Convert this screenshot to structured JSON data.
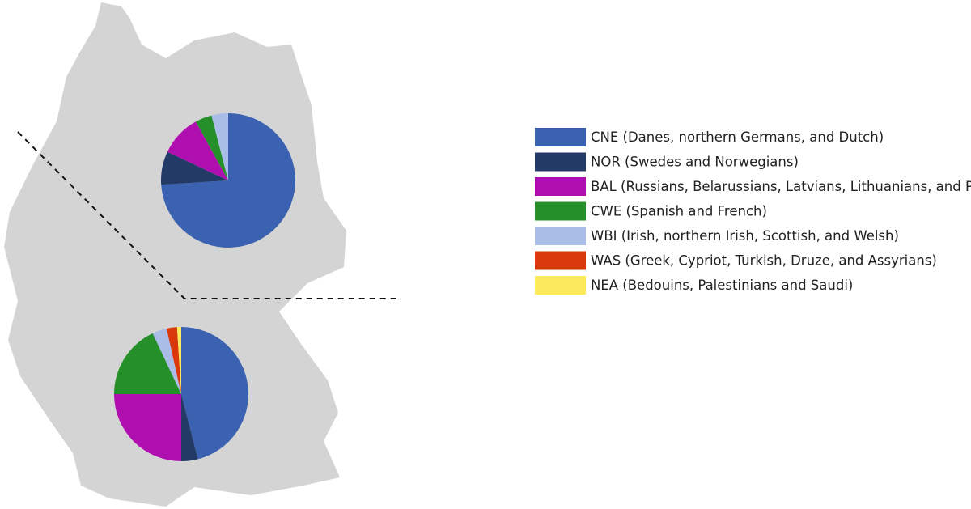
{
  "chart_data": {
    "type": "pie",
    "categories": [
      "CNE (Danes, northern Germans, and Dutch)",
      "NOR (Swedes and Norwegians)",
      "BAL (Russians, Belarussians, Latvians, Lithuanians, and Polish)",
      "CWE (Spanish and French)",
      "WBI (Irish, northern Irish, Scottish, and Welsh)",
      "WAS (Greek, Cypriot, Turkish, Druze, and Assyrians)",
      "NEA (Bedouins, Palestinians and Saudi)"
    ],
    "colors": [
      "#3a62b0",
      "#233a66",
      "#b00fb0",
      "#259029",
      "#a9bde6",
      "#d9380a",
      "#fde95c"
    ],
    "pies": [
      {
        "values": [
          74,
          8,
          10,
          4,
          4,
          0,
          0
        ]
      },
      {
        "values": [
          46,
          4,
          25,
          18,
          3.5,
          2.5,
          1
        ]
      }
    ]
  }
}
